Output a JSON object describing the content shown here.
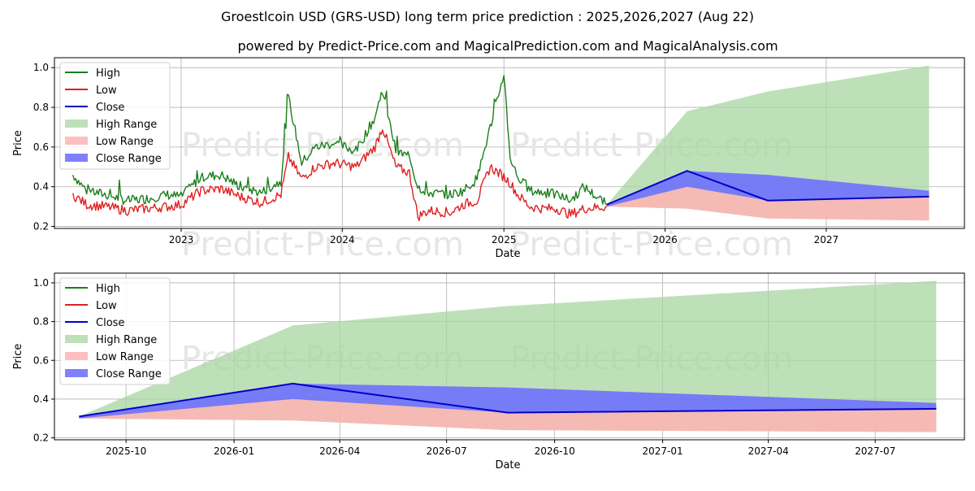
{
  "title": "Groestlcoin USD (GRS-USD) long term price prediction : 2025,2026,2027 (Aug 22)",
  "subtitle": "powered by Predict-Price.com and MagicalPrediction.com and MagicalAnalysis.com",
  "watermark": "Predict-Price.com",
  "colors": {
    "high": "#1a7f1a",
    "low": "#e02020",
    "close": "#0000cc",
    "high_range": "#a8d5a2",
    "low_range": "#ffb3b3",
    "close_range": "#6a6aff"
  },
  "legend": [
    "High",
    "Low",
    "Close",
    "High Range",
    "Low Range",
    "Close Range"
  ],
  "chart_data": [
    {
      "type": "line",
      "xlabel": "Date",
      "ylabel": "Price",
      "x_ticks": [
        "2023",
        "2024",
        "2025",
        "2026",
        "2027"
      ],
      "y_ticks": [
        "0.2",
        "0.4",
        "0.6",
        "0.8",
        "1.0"
      ],
      "ylim": [
        0.19,
        1.05
      ],
      "xlim": [
        "2022-03-20",
        "2027-11-10"
      ],
      "grid": true,
      "legend_position": "upper-left",
      "series": [
        {
          "name": "High",
          "x": [
            "2022-05-01",
            "2022-06-01",
            "2022-07-15",
            "2022-09-01",
            "2022-10-15",
            "2022-12-01",
            "2023-01-01",
            "2023-02-15",
            "2023-04-01",
            "2023-05-15",
            "2023-07-01",
            "2023-08-15",
            "2023-09-01",
            "2023-10-01",
            "2023-11-01",
            "2023-12-15",
            "2024-02-01",
            "2024-03-15",
            "2024-04-01",
            "2024-05-01",
            "2024-06-01",
            "2024-06-20",
            "2024-07-15",
            "2024-09-01",
            "2024-10-01",
            "2024-11-01",
            "2024-12-01",
            "2025-01-01",
            "2025-01-15",
            "2025-02-01",
            "2025-03-01",
            "2025-04-01",
            "2025-05-01",
            "2025-06-01",
            "2025-07-01",
            "2025-08-22"
          ],
          "values": [
            0.46,
            0.38,
            0.36,
            0.33,
            0.34,
            0.36,
            0.35,
            0.45,
            0.46,
            0.4,
            0.37,
            0.43,
            0.85,
            0.52,
            0.6,
            0.62,
            0.58,
            0.75,
            0.89,
            0.58,
            0.55,
            0.4,
            0.37,
            0.36,
            0.38,
            0.44,
            0.7,
            0.97,
            0.55,
            0.45,
            0.38,
            0.37,
            0.36,
            0.33,
            0.4,
            0.31
          ]
        },
        {
          "name": "Low",
          "x": [
            "2022-05-01",
            "2022-06-01",
            "2022-07-15",
            "2022-09-01",
            "2022-10-15",
            "2022-12-01",
            "2023-01-01",
            "2023-02-15",
            "2023-04-01",
            "2023-05-15",
            "2023-07-01",
            "2023-08-15",
            "2023-09-01",
            "2023-10-01",
            "2023-11-01",
            "2023-12-15",
            "2024-02-01",
            "2024-03-15",
            "2024-04-01",
            "2024-05-01",
            "2024-06-01",
            "2024-06-20",
            "2024-07-15",
            "2024-09-01",
            "2024-10-01",
            "2024-11-01",
            "2024-12-01",
            "2025-01-01",
            "2025-01-15",
            "2025-02-01",
            "2025-03-01",
            "2025-04-01",
            "2025-05-01",
            "2025-06-01",
            "2025-07-01",
            "2025-08-22"
          ],
          "values": [
            0.36,
            0.31,
            0.3,
            0.28,
            0.29,
            0.3,
            0.31,
            0.38,
            0.39,
            0.35,
            0.32,
            0.36,
            0.55,
            0.44,
            0.5,
            0.52,
            0.5,
            0.6,
            0.7,
            0.5,
            0.47,
            0.25,
            0.28,
            0.27,
            0.31,
            0.33,
            0.5,
            0.45,
            0.42,
            0.36,
            0.3,
            0.29,
            0.29,
            0.26,
            0.29,
            0.3
          ]
        },
        {
          "name": "Close",
          "x": [
            "2025-08-22",
            "2026-02-20",
            "2026-08-22",
            "2027-08-22"
          ],
          "values": [
            0.31,
            0.48,
            0.33,
            0.35
          ]
        }
      ],
      "ranges": [
        {
          "name": "High Range",
          "x": [
            "2025-08-22",
            "2026-02-20",
            "2026-08-22",
            "2027-08-22"
          ],
          "lower": [
            0.3,
            0.29,
            0.24,
            0.23
          ],
          "upper": [
            0.31,
            0.78,
            0.88,
            1.01
          ]
        },
        {
          "name": "Low Range",
          "x": [
            "2025-08-22",
            "2026-02-20",
            "2026-08-22",
            "2027-08-22"
          ],
          "lower": [
            0.3,
            0.29,
            0.24,
            0.23
          ],
          "upper": [
            0.31,
            0.4,
            0.33,
            0.35
          ]
        },
        {
          "name": "Close Range",
          "x": [
            "2025-08-22",
            "2026-02-20",
            "2026-08-22",
            "2027-08-22"
          ],
          "lower": [
            0.3,
            0.4,
            0.33,
            0.35
          ],
          "upper": [
            0.31,
            0.48,
            0.46,
            0.38
          ]
        }
      ]
    },
    {
      "type": "line",
      "xlabel": "Date",
      "ylabel": "Price",
      "x_ticks": [
        "2025-10",
        "2026-01",
        "2026-04",
        "2026-07",
        "2026-10",
        "2027-01",
        "2027-04",
        "2027-07"
      ],
      "y_ticks": [
        "0.2",
        "0.4",
        "0.6",
        "0.8",
        "1.0"
      ],
      "ylim": [
        0.19,
        1.05
      ],
      "xlim": [
        "2025-08-01",
        "2027-09-15"
      ],
      "grid": true,
      "legend_position": "upper-left",
      "series": [
        {
          "name": "Close",
          "x": [
            "2025-08-22",
            "2026-02-20",
            "2026-08-22",
            "2027-08-22"
          ],
          "values": [
            0.31,
            0.48,
            0.33,
            0.35
          ]
        }
      ],
      "ranges": [
        {
          "name": "High Range",
          "x": [
            "2025-08-22",
            "2026-02-20",
            "2026-08-22",
            "2027-08-22"
          ],
          "lower": [
            0.3,
            0.29,
            0.24,
            0.23
          ],
          "upper": [
            0.31,
            0.78,
            0.88,
            1.01
          ]
        },
        {
          "name": "Low Range",
          "x": [
            "2025-08-22",
            "2026-02-20",
            "2026-08-22",
            "2027-08-22"
          ],
          "lower": [
            0.3,
            0.29,
            0.24,
            0.23
          ],
          "upper": [
            0.31,
            0.4,
            0.33,
            0.35
          ]
        },
        {
          "name": "Close Range",
          "x": [
            "2025-08-22",
            "2026-02-20",
            "2026-08-22",
            "2027-08-22"
          ],
          "lower": [
            0.3,
            0.4,
            0.33,
            0.35
          ],
          "upper": [
            0.31,
            0.48,
            0.46,
            0.38
          ]
        }
      ]
    }
  ]
}
